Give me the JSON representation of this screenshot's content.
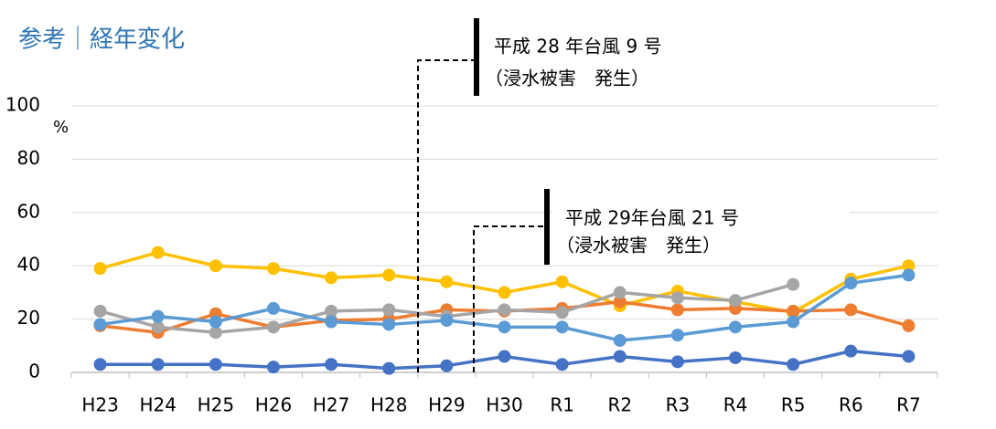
{
  "chart_data": {
    "type": "line",
    "title": "参考｜経年変化",
    "ylabel": "%",
    "categories": [
      "H23",
      "H24",
      "H25",
      "H26",
      "H27",
      "H28",
      "H29",
      "H30",
      "R1",
      "R2",
      "R3",
      "R4",
      "R5",
      "R6",
      "R7"
    ],
    "ylim": [
      0,
      100
    ],
    "yticks": [
      0,
      20,
      40,
      60,
      80,
      100
    ],
    "grid": true,
    "series": [
      {
        "color": "#ffc000",
        "values": [
          39,
          45,
          40,
          39,
          35.5,
          36.5,
          34,
          30,
          34,
          25,
          30.5,
          26.5,
          22.5,
          35,
          40
        ]
      },
      {
        "color": "#ed7d31",
        "values": [
          17.5,
          15,
          22,
          17,
          19.5,
          20,
          23.5,
          23,
          24,
          26.5,
          23.5,
          24,
          23,
          23.5,
          17.5
        ]
      },
      {
        "color": "#a5a5a5",
        "values": [
          23,
          17,
          15,
          17,
          23,
          23.5,
          21,
          23.5,
          22.5,
          30,
          28,
          27,
          33,
          null,
          null
        ]
      },
      {
        "color": "#5b9bd5",
        "values": [
          18,
          21,
          19,
          24,
          19,
          18,
          19.5,
          17,
          17,
          12,
          14,
          17,
          19,
          33.5,
          36.5
        ]
      },
      {
        "color": "#4472c4",
        "values": [
          3,
          3,
          3,
          2,
          3,
          1.5,
          2.5,
          6,
          3,
          6,
          4,
          5.5,
          3,
          8,
          6
        ]
      }
    ],
    "annotations": [
      {
        "lines": [
          "平成 28 年台風 9 号",
          "（浸水被害　発生）"
        ]
      },
      {
        "lines": [
          "平成 29年台風 21 号",
          "（浸水被害　発生）"
        ]
      }
    ]
  }
}
